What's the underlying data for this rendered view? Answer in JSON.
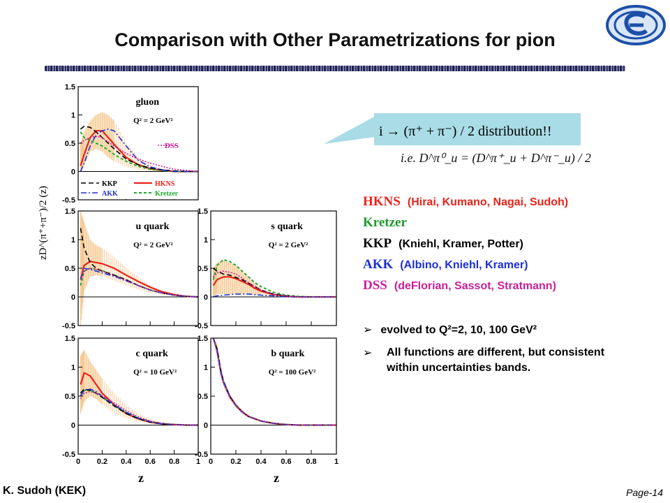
{
  "slide": {
    "title": "Comparison with Other Parametrizations for pion",
    "author": "K. Sudoh (KEK)",
    "page_prefix": "Page",
    "page_number": "-14"
  },
  "callout": {
    "text": "i → (π⁺ + π⁻) / 2   distribution!!",
    "ie_text": "i.e.  D^π⁰_u = (D^π⁺_u + D^π⁻_u) / 2"
  },
  "parametrizations": [
    {
      "name": "HKNS",
      "desc": "(Hirai, Kumano, Nagai, Sudoh)",
      "color": "#e8231a"
    },
    {
      "name": "Kretzer",
      "desc": "",
      "color": "#1e9a2c"
    },
    {
      "name": "KKP",
      "desc": "(Kniehl, Kramer, Potter)",
      "color": "#000000"
    },
    {
      "name": "AKK",
      "desc": "(Albino, Kniehl, Kramer)",
      "color": "#1c2fd6"
    },
    {
      "name": "DSS",
      "desc": "(deFlorian, Sassot, Stratmann)",
      "color": "#c8209a"
    }
  ],
  "bullets": [
    "evolved to Q²=2, 10, 100 GeV²",
    "All functions are different, but consistent within uncertainties bands."
  ],
  "colors": {
    "band": "#f5c890",
    "hkns": "#e8231a",
    "kretzer": "#1faa2e",
    "kkp": "#000000",
    "akk": "#1c2fd6",
    "dss": "#c8209a"
  },
  "axis": {
    "ylabel": "zD^(π⁺+π⁻)/2 (z)",
    "xlabel": "z",
    "yticks": [
      "1.5",
      "1",
      "0.5",
      "0",
      "-0.5"
    ],
    "xticks": [
      "0",
      "0.2",
      "0.4",
      "0.6",
      "0.8",
      "1"
    ]
  },
  "legend": [
    "KKP",
    "HKNS",
    "AKK",
    "Kretzer",
    "DSS"
  ],
  "chart_data": [
    {
      "type": "line",
      "title": "gluon",
      "q2": "Q² = 2 GeV²",
      "xlim": [
        0,
        1
      ],
      "ylim": [
        -0.5,
        1.5
      ],
      "x": [
        0.02,
        0.05,
        0.1,
        0.15,
        0.2,
        0.25,
        0.3,
        0.4,
        0.5,
        0.6,
        0.7,
        0.8,
        0.9,
        1.0
      ],
      "band": {
        "lower": [
          0.0,
          0.1,
          0.35,
          0.4,
          0.35,
          0.25,
          0.18,
          0.08,
          0.03,
          0.01,
          0.0,
          0.0,
          0.0,
          0.0
        ],
        "upper": [
          0.5,
          0.7,
          0.9,
          1.0,
          1.05,
          1.0,
          0.9,
          0.5,
          0.25,
          0.12,
          0.05,
          0.02,
          0.01,
          0.0
        ]
      },
      "series": [
        {
          "name": "HKNS",
          "values": [
            0.1,
            0.3,
            0.6,
            0.72,
            0.72,
            0.6,
            0.48,
            0.25,
            0.12,
            0.05,
            0.02,
            0.0,
            0.0,
            0.0
          ]
        },
        {
          "name": "Kretzer",
          "values": [
            0.7,
            0.6,
            0.55,
            0.5,
            0.45,
            0.38,
            0.3,
            0.18,
            0.09,
            0.04,
            0.02,
            0.0,
            0.0,
            0.0
          ]
        },
        {
          "name": "KKP",
          "values": [
            0.75,
            0.8,
            0.78,
            0.7,
            0.6,
            0.5,
            0.4,
            0.22,
            0.12,
            0.06,
            0.03,
            0.01,
            0.0,
            0.0
          ]
        },
        {
          "name": "AKK",
          "values": [
            0.0,
            0.15,
            0.45,
            0.65,
            0.72,
            0.75,
            0.72,
            0.45,
            0.2,
            0.08,
            0.03,
            0.0,
            0.0,
            0.0
          ]
        },
        {
          "name": "DSS",
          "values": [
            0.5,
            0.55,
            0.6,
            0.62,
            0.6,
            0.52,
            0.45,
            0.32,
            0.22,
            0.15,
            0.09,
            0.04,
            0.02,
            0.0
          ]
        }
      ]
    },
    {
      "type": "line",
      "title": "u quark",
      "q2": "Q² = 2 GeV²",
      "xlim": [
        0,
        1
      ],
      "ylim": [
        -0.5,
        1.5
      ],
      "x": [
        0.02,
        0.05,
        0.1,
        0.15,
        0.2,
        0.3,
        0.4,
        0.5,
        0.6,
        0.7,
        0.8,
        0.9,
        1.0
      ],
      "band": {
        "lower": [
          -0.5,
          0.1,
          0.35,
          0.38,
          0.36,
          0.28,
          0.2,
          0.13,
          0.07,
          0.04,
          0.02,
          0.0,
          0.0
        ],
        "upper": [
          1.5,
          1.3,
          1.0,
          0.9,
          0.85,
          0.7,
          0.5,
          0.35,
          0.2,
          0.1,
          0.05,
          0.02,
          0.0
        ]
      },
      "series": [
        {
          "name": "HKNS",
          "values": [
            0.3,
            0.55,
            0.62,
            0.6,
            0.58,
            0.5,
            0.38,
            0.27,
            0.17,
            0.09,
            0.04,
            0.01,
            0.0
          ]
        },
        {
          "name": "Kretzer",
          "values": [
            0.2,
            0.45,
            0.5,
            0.48,
            0.46,
            0.38,
            0.3,
            0.2,
            0.12,
            0.07,
            0.03,
            0.01,
            0.0
          ]
        },
        {
          "name": "KKP",
          "values": [
            1.2,
            0.85,
            0.6,
            0.5,
            0.45,
            0.38,
            0.3,
            0.2,
            0.12,
            0.07,
            0.03,
            0.01,
            0.0
          ]
        },
        {
          "name": "AKK",
          "values": [
            0.3,
            0.5,
            0.48,
            0.45,
            0.42,
            0.36,
            0.28,
            0.2,
            0.12,
            0.07,
            0.03,
            0.01,
            0.0
          ]
        },
        {
          "name": "DSS",
          "values": [
            0.3,
            0.45,
            0.5,
            0.48,
            0.45,
            0.37,
            0.29,
            0.2,
            0.12,
            0.07,
            0.03,
            0.01,
            0.0
          ]
        }
      ]
    },
    {
      "type": "line",
      "title": "s quark",
      "q2": "Q² = 2 GeV²",
      "xlim": [
        0,
        1
      ],
      "ylim": [
        -0.5,
        1.5
      ],
      "x": [
        0.02,
        0.05,
        0.1,
        0.15,
        0.2,
        0.25,
        0.3,
        0.35,
        0.4,
        0.5,
        0.6,
        0.7,
        0.8,
        1.0
      ],
      "band": {
        "lower": [
          0.0,
          0.05,
          0.05,
          0.05,
          0.05,
          0.05,
          0.05,
          0.04,
          0.03,
          0.02,
          0.01,
          0.0,
          0.0,
          0.0
        ],
        "upper": [
          0.5,
          0.6,
          0.65,
          0.6,
          0.55,
          0.45,
          0.35,
          0.25,
          0.15,
          0.06,
          0.02,
          0.0,
          0.0,
          0.0
        ]
      },
      "series": [
        {
          "name": "HKNS",
          "values": [
            0.2,
            0.3,
            0.35,
            0.35,
            0.32,
            0.27,
            0.22,
            0.15,
            0.1,
            0.04,
            0.01,
            0.0,
            0.0,
            0.0
          ]
        },
        {
          "name": "Kretzer",
          "values": [
            0.3,
            0.55,
            0.65,
            0.62,
            0.55,
            0.45,
            0.35,
            0.25,
            0.18,
            0.08,
            0.03,
            0.01,
            0.0,
            0.0
          ]
        },
        {
          "name": "KKP",
          "values": [
            0.5,
            0.45,
            0.4,
            0.38,
            0.34,
            0.3,
            0.24,
            0.18,
            0.12,
            0.05,
            0.02,
            0.0,
            0.0,
            0.0
          ]
        },
        {
          "name": "AKK",
          "values": [
            0.0,
            0.02,
            0.03,
            0.04,
            0.05,
            0.05,
            0.05,
            0.04,
            0.03,
            0.02,
            0.0,
            0.0,
            0.0,
            0.0
          ]
        },
        {
          "name": "DSS",
          "values": [
            0.35,
            0.42,
            0.45,
            0.43,
            0.4,
            0.33,
            0.25,
            0.18,
            0.12,
            0.05,
            0.02,
            0.0,
            0.0,
            0.0
          ]
        }
      ]
    },
    {
      "type": "line",
      "title": "c quark",
      "q2": "Q² = 10 GeV²",
      "xlim": [
        0,
        1
      ],
      "ylim": [
        -0.5,
        1.5
      ],
      "x": [
        0.02,
        0.05,
        0.1,
        0.15,
        0.2,
        0.3,
        0.4,
        0.5,
        0.6,
        0.7,
        0.8,
        0.9,
        1.0
      ],
      "band": {
        "lower": [
          0.2,
          0.4,
          0.5,
          0.45,
          0.35,
          0.2,
          0.12,
          0.06,
          0.03,
          0.01,
          0.0,
          0.0,
          0.0
        ],
        "upper": [
          1.2,
          1.3,
          1.1,
          0.95,
          0.8,
          0.55,
          0.35,
          0.2,
          0.1,
          0.05,
          0.02,
          0.0,
          0.0
        ]
      },
      "series": [
        {
          "name": "HKNS",
          "values": [
            0.7,
            0.9,
            0.85,
            0.7,
            0.55,
            0.35,
            0.2,
            0.11,
            0.05,
            0.02,
            0.01,
            0.0,
            0.0
          ]
        },
        {
          "name": "Kretzer",
          "values": [
            0.5,
            0.6,
            0.6,
            0.55,
            0.48,
            0.34,
            0.22,
            0.12,
            0.06,
            0.03,
            0.01,
            0.0,
            0.0
          ]
        },
        {
          "name": "KKP",
          "values": [
            0.55,
            0.62,
            0.6,
            0.55,
            0.48,
            0.33,
            0.2,
            0.11,
            0.05,
            0.02,
            0.01,
            0.0,
            0.0
          ]
        },
        {
          "name": "AKK",
          "values": [
            0.5,
            0.6,
            0.62,
            0.58,
            0.5,
            0.35,
            0.22,
            0.12,
            0.06,
            0.02,
            0.01,
            0.0,
            0.0
          ]
        },
        {
          "name": "DSS",
          "values": [
            0.45,
            0.55,
            0.58,
            0.55,
            0.5,
            0.38,
            0.25,
            0.14,
            0.07,
            0.03,
            0.01,
            0.0,
            0.0
          ]
        }
      ]
    },
    {
      "type": "line",
      "title": "b quark",
      "q2": "Q² = 100 GeV²",
      "xlim": [
        0,
        1
      ],
      "ylim": [
        -0.5,
        1.5
      ],
      "x": [
        0.02,
        0.05,
        0.08,
        0.1,
        0.15,
        0.2,
        0.25,
        0.3,
        0.4,
        0.5,
        0.6,
        0.7,
        0.8,
        1.0
      ],
      "band": {
        "lower": [
          1.5,
          1.2,
          0.85,
          0.7,
          0.45,
          0.3,
          0.2,
          0.13,
          0.06,
          0.03,
          0.01,
          0.0,
          0.0,
          0.0
        ],
        "upper": [
          1.5,
          1.4,
          1.0,
          0.8,
          0.55,
          0.38,
          0.26,
          0.18,
          0.09,
          0.04,
          0.02,
          0.0,
          0.0,
          0.0
        ]
      },
      "series": [
        {
          "name": "HKNS",
          "values": [
            1.5,
            1.3,
            0.92,
            0.75,
            0.5,
            0.34,
            0.23,
            0.15,
            0.07,
            0.03,
            0.01,
            0.0,
            0.0,
            0.0
          ]
        },
        {
          "name": "Kretzer",
          "values": [
            1.5,
            1.28,
            0.9,
            0.74,
            0.49,
            0.33,
            0.22,
            0.15,
            0.07,
            0.03,
            0.01,
            0.0,
            0.0,
            0.0
          ]
        },
        {
          "name": "KKP",
          "values": [
            1.5,
            1.32,
            0.95,
            0.77,
            0.5,
            0.34,
            0.23,
            0.15,
            0.07,
            0.03,
            0.01,
            0.0,
            0.0,
            0.0
          ]
        },
        {
          "name": "AKK",
          "values": [
            1.5,
            1.3,
            0.93,
            0.76,
            0.5,
            0.34,
            0.23,
            0.15,
            0.07,
            0.03,
            0.01,
            0.0,
            0.0,
            0.0
          ]
        },
        {
          "name": "DSS",
          "values": [
            1.5,
            1.25,
            0.88,
            0.72,
            0.48,
            0.33,
            0.22,
            0.15,
            0.07,
            0.03,
            0.01,
            0.0,
            0.0,
            0.0
          ]
        }
      ]
    }
  ]
}
